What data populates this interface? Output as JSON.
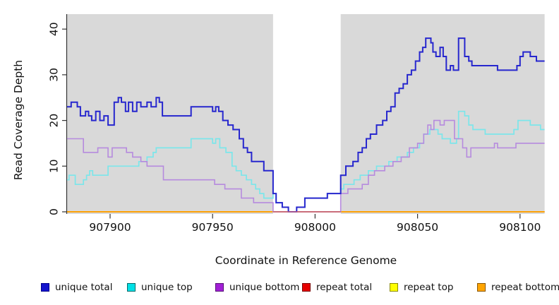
{
  "chart_data": {
    "type": "line",
    "step": true,
    "xlabel": "Coordinate in Reference Genome",
    "ylabel": "Read Coverage Depth",
    "xlim": [
      907879,
      908112
    ],
    "ylim": [
      0,
      43.5
    ],
    "xticks": [
      907900,
      907950,
      908000,
      908050,
      908100
    ],
    "xtick_labels": [
      "907900",
      "907950",
      "908000",
      "908050",
      "908100"
    ],
    "yticks": [
      0,
      10,
      20,
      30,
      40
    ],
    "ytick_labels": [
      "0",
      "10",
      "20",
      "30",
      "40"
    ],
    "panel_color": "#d9d9d9",
    "grid": false,
    "highlight_band": {
      "x0": 907979.5,
      "x1": 908012.5,
      "color": "#ffffff",
      "zero_line_color": "#c6617c"
    },
    "series": [
      {
        "name": "repeat total",
        "color": "#e01010",
        "width": 1.6,
        "points": [
          [
            907879,
            0
          ],
          [
            908112,
            0
          ]
        ]
      },
      {
        "name": "repeat top",
        "color": "#ffff00",
        "width": 1.6,
        "points": [
          [
            907879,
            0
          ],
          [
            908112,
            0
          ]
        ]
      },
      {
        "name": "repeat bottom",
        "color": "#ff9f00",
        "width": 1.8,
        "points": [
          [
            907879,
            0
          ],
          [
            908112,
            0
          ]
        ]
      },
      {
        "name": "unique top",
        "color": "#7ce6ea",
        "width": 1.7,
        "points": [
          [
            907879,
            7
          ],
          [
            907880,
            8
          ],
          [
            907883,
            6
          ],
          [
            907887,
            7
          ],
          [
            907888.5,
            8
          ],
          [
            907890,
            9
          ],
          [
            907891.5,
            8
          ],
          [
            907895,
            8
          ],
          [
            907899,
            10
          ],
          [
            907914,
            11
          ],
          [
            907918,
            12
          ],
          [
            907921,
            13
          ],
          [
            907922.5,
            14
          ],
          [
            907939.5,
            16
          ],
          [
            907950,
            15
          ],
          [
            907951.5,
            16
          ],
          [
            907953.5,
            14
          ],
          [
            907956.5,
            13
          ],
          [
            907959.5,
            10
          ],
          [
            907961.5,
            9
          ],
          [
            907964,
            8
          ],
          [
            907966.5,
            7
          ],
          [
            907969,
            6
          ],
          [
            907971,
            5
          ],
          [
            907973,
            4
          ],
          [
            907975,
            3
          ],
          [
            907979.5,
            4
          ],
          [
            907981,
            2
          ],
          [
            907984,
            1
          ],
          [
            907987,
            0
          ],
          [
            907991,
            1
          ],
          [
            907995,
            3
          ],
          [
            908006,
            4
          ],
          [
            908012.5,
            5
          ],
          [
            908014,
            6
          ],
          [
            908019,
            7
          ],
          [
            908022,
            8
          ],
          [
            908026,
            9
          ],
          [
            908030,
            10
          ],
          [
            908036,
            11
          ],
          [
            908040,
            12
          ],
          [
            908045,
            13
          ],
          [
            908048,
            14
          ],
          [
            908051,
            15
          ],
          [
            908053,
            17
          ],
          [
            908056,
            18
          ],
          [
            908060,
            17
          ],
          [
            908062,
            16
          ],
          [
            908066,
            15
          ],
          [
            908069,
            16
          ],
          [
            908070,
            22
          ],
          [
            908073,
            21
          ],
          [
            908075,
            19
          ],
          [
            908077,
            18
          ],
          [
            908083,
            17
          ],
          [
            908097,
            18
          ],
          [
            908099,
            20
          ],
          [
            908105,
            19
          ],
          [
            908110,
            18
          ],
          [
            908112,
            18
          ]
        ]
      },
      {
        "name": "unique bottom",
        "color": "#b68ade",
        "width": 1.6,
        "points": [
          [
            907879,
            16
          ],
          [
            907887,
            13
          ],
          [
            907894,
            14
          ],
          [
            907899,
            12
          ],
          [
            907901,
            14
          ],
          [
            907908,
            13
          ],
          [
            907911,
            12
          ],
          [
            907915,
            11
          ],
          [
            907918,
            10
          ],
          [
            907926,
            7
          ],
          [
            907951,
            6
          ],
          [
            907956,
            5
          ],
          [
            907964,
            3
          ],
          [
            907970,
            2
          ],
          [
            907979.5,
            0
          ],
          [
            908012.5,
            4
          ],
          [
            908016,
            5
          ],
          [
            908023,
            6
          ],
          [
            908026,
            8
          ],
          [
            908029,
            9
          ],
          [
            908034,
            10
          ],
          [
            908038,
            11
          ],
          [
            908042,
            12
          ],
          [
            908046,
            14
          ],
          [
            908050,
            15
          ],
          [
            908053,
            17
          ],
          [
            908055,
            19
          ],
          [
            908056.5,
            18
          ],
          [
            908058,
            20
          ],
          [
            908061,
            19
          ],
          [
            908063,
            20
          ],
          [
            908068,
            16
          ],
          [
            908072,
            14
          ],
          [
            908074,
            12
          ],
          [
            908076,
            14
          ],
          [
            908087.5,
            15
          ],
          [
            908089,
            14
          ],
          [
            908098,
            15
          ],
          [
            908112,
            15
          ]
        ]
      },
      {
        "name": "unique total",
        "color": "#2727ce",
        "width": 2,
        "points": [
          [
            907879,
            23
          ],
          [
            907881,
            24
          ],
          [
            907884,
            23
          ],
          [
            907885.5,
            21
          ],
          [
            907888,
            22
          ],
          [
            907889.5,
            21
          ],
          [
            907891,
            20
          ],
          [
            907893,
            22
          ],
          [
            907895,
            20
          ],
          [
            907897,
            21
          ],
          [
            907899,
            19
          ],
          [
            907902,
            24
          ],
          [
            907904,
            25
          ],
          [
            907905.5,
            24
          ],
          [
            907907.5,
            22
          ],
          [
            907909,
            24
          ],
          [
            907911,
            22
          ],
          [
            907913,
            24
          ],
          [
            907915,
            23
          ],
          [
            907918,
            24
          ],
          [
            907920,
            23
          ],
          [
            907922.5,
            25
          ],
          [
            907924,
            24
          ],
          [
            907925.5,
            21
          ],
          [
            907939.5,
            23
          ],
          [
            907950,
            22
          ],
          [
            907951.5,
            23
          ],
          [
            907953,
            22
          ],
          [
            907955,
            20
          ],
          [
            907957.5,
            19
          ],
          [
            907960,
            18
          ],
          [
            907963,
            16
          ],
          [
            907965,
            14
          ],
          [
            907967,
            13
          ],
          [
            907969,
            11
          ],
          [
            907975,
            9
          ],
          [
            907979.5,
            4
          ],
          [
            907981,
            2
          ],
          [
            907984,
            1
          ],
          [
            907987,
            0
          ],
          [
            907991,
            1
          ],
          [
            907995,
            3
          ],
          [
            908006,
            4
          ],
          [
            908012.5,
            8
          ],
          [
            908015,
            10
          ],
          [
            908018.5,
            11
          ],
          [
            908021,
            13
          ],
          [
            908023,
            14
          ],
          [
            908025,
            16
          ],
          [
            908027,
            17
          ],
          [
            908030,
            19
          ],
          [
            908033,
            20
          ],
          [
            908035,
            22
          ],
          [
            908037,
            23
          ],
          [
            908039,
            26
          ],
          [
            908041,
            27
          ],
          [
            908043,
            28
          ],
          [
            908045,
            30
          ],
          [
            908047,
            31
          ],
          [
            908049,
            33
          ],
          [
            908051,
            35
          ],
          [
            908052.5,
            36
          ],
          [
            908054,
            38
          ],
          [
            908056.5,
            37
          ],
          [
            908057.5,
            35
          ],
          [
            908059,
            34
          ],
          [
            908061,
            36
          ],
          [
            908062.5,
            34
          ],
          [
            908064,
            31
          ],
          [
            908066,
            32
          ],
          [
            908067.5,
            31
          ],
          [
            908070,
            38
          ],
          [
            908073,
            34
          ],
          [
            908075,
            33
          ],
          [
            908076.5,
            32
          ],
          [
            908089,
            31
          ],
          [
            908098.5,
            32
          ],
          [
            908100,
            34
          ],
          [
            908101.5,
            35
          ],
          [
            908105,
            34
          ],
          [
            908108,
            33
          ],
          [
            908112,
            33
          ]
        ]
      }
    ]
  },
  "legend": {
    "items": [
      {
        "label": "unique total",
        "color": "#1414cd",
        "border": "#00008b"
      },
      {
        "label": "unique top",
        "color": "#00e0e6",
        "border": "#006a6a"
      },
      {
        "label": "unique bottom",
        "color": "#a21fd6",
        "border": "#551177"
      },
      {
        "label": "repeat total",
        "color": "#e60000",
        "border": "#7a0000"
      },
      {
        "label": "repeat top",
        "color": "#ffff00",
        "border": "#8a8a00"
      },
      {
        "label": "repeat bottom",
        "color": "#ffa500",
        "border": "#8a5600"
      }
    ]
  }
}
